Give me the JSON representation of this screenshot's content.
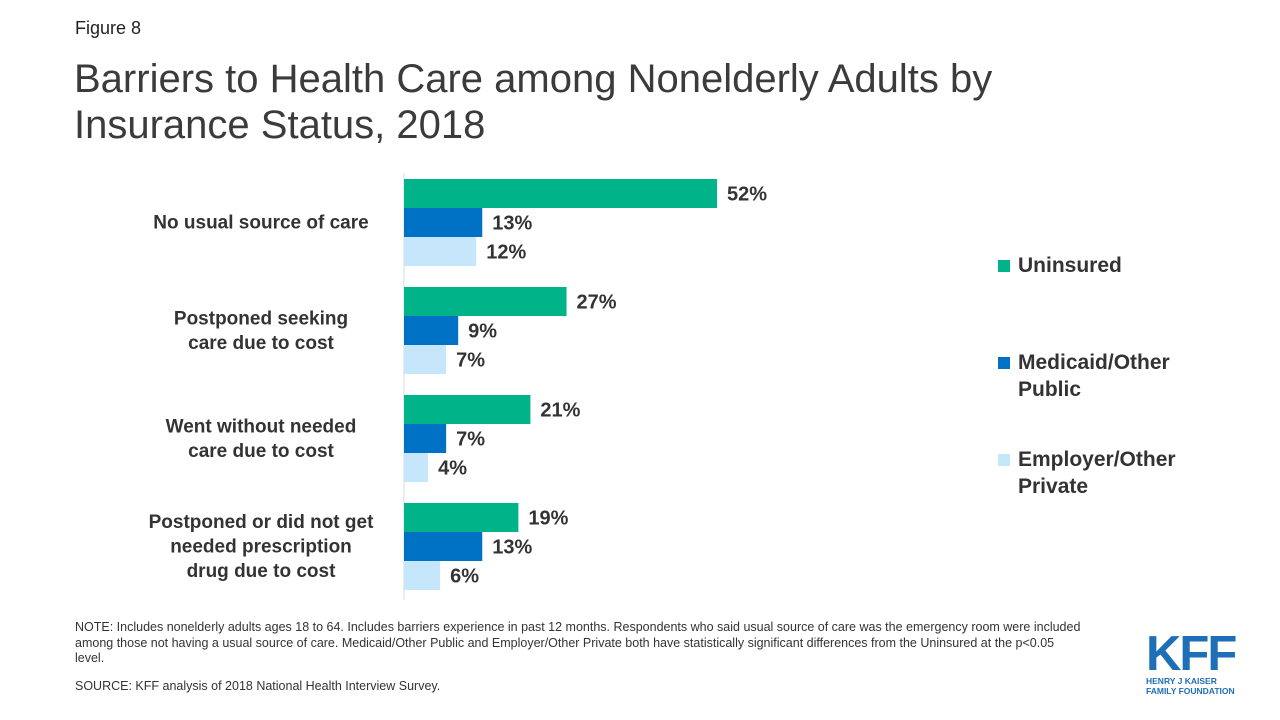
{
  "figure_label": "Figure 8",
  "title": "Barriers to Health Care among Nonelderly Adults by Insurance Status, 2018",
  "chart_data": {
    "type": "bar",
    "orientation": "horizontal",
    "title": "Barriers to Health Care among Nonelderly Adults by Insurance Status, 2018",
    "categories": [
      [
        "No usual source of care"
      ],
      [
        "Postponed seeking",
        "care due to cost"
      ],
      [
        "Went without needed",
        "care due to cost"
      ],
      [
        "Postponed or did not get",
        "needed prescription",
        "drug due to cost"
      ]
    ],
    "series": [
      {
        "name": "Uninsured",
        "color": "#00b388",
        "values": [
          52,
          27,
          21,
          19
        ]
      },
      {
        "name": "Medicaid/Other Public",
        "color": "#0072c6",
        "values": [
          13,
          9,
          7,
          13
        ]
      },
      {
        "name": "Employer/Other Private",
        "color": "#c5e6fb",
        "values": [
          12,
          7,
          4,
          6
        ]
      }
    ],
    "value_suffix": "%",
    "xlim": [
      0,
      60
    ],
    "xlabel": "",
    "ylabel": "",
    "grid": false,
    "legend_position": "right"
  },
  "legend": [
    {
      "label": "Uninsured",
      "color": "#00b388"
    },
    {
      "label": "Medicaid/Other Public",
      "color": "#0072c6"
    },
    {
      "label": "Employer/Other Private",
      "color": "#c5e6fb"
    }
  ],
  "note": "NOTE: Includes nonelderly adults ages 18 to 64. Includes barriers experience in past 12 months. Respondents who said usual source of care was the emergency room were included among those not having a usual source of care. Medicaid/Other Public and Employer/Other Private both have statistically significant differences from the Uninsured at the p<0.05 level.",
  "source": "SOURCE: KFF analysis of 2018 National Health Interview Survey.",
  "logo": {
    "mark": "KFF",
    "line1": "HENRY J KAISER",
    "line2": "FAMILY FOUNDATION"
  }
}
